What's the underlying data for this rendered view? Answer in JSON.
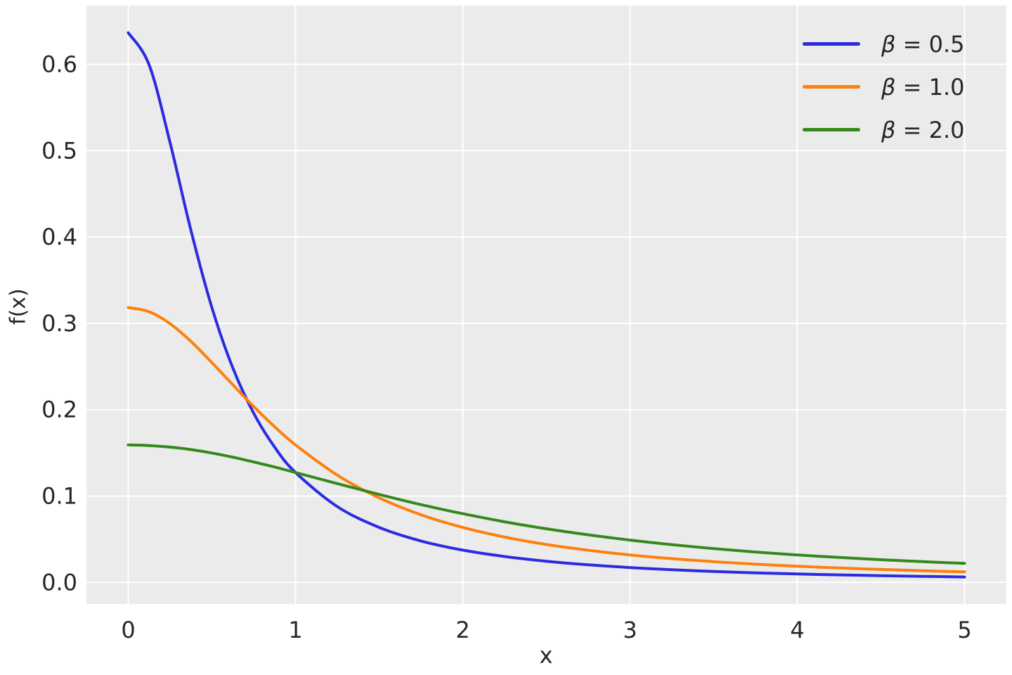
{
  "chart_data": {
    "type": "line",
    "title": "",
    "xlabel": "x",
    "ylabel": "f(x)",
    "xlim": [
      -0.25,
      5.25
    ],
    "ylim": [
      -0.025,
      0.668
    ],
    "grid": true,
    "legend_position": "upper right",
    "xticks": {
      "values": [
        0,
        1,
        2,
        3,
        4,
        5
      ],
      "labels": [
        "0",
        "1",
        "2",
        "3",
        "4",
        "5"
      ]
    },
    "yticks": {
      "values": [
        0.0,
        0.1,
        0.2,
        0.3,
        0.4,
        0.5,
        0.6
      ],
      "labels": [
        "0.0",
        "0.1",
        "0.2",
        "0.3",
        "0.4",
        "0.5",
        "0.6"
      ]
    },
    "x": [
      0,
      0.125,
      0.25,
      0.375,
      0.5,
      0.625,
      0.75,
      0.875,
      1.0,
      1.25,
      1.5,
      1.75,
      2.0,
      2.25,
      2.5,
      2.75,
      3.0,
      3.25,
      3.5,
      3.75,
      4.0,
      4.25,
      4.5,
      4.75,
      5.0
    ],
    "series": [
      {
        "name": "β = 0.5",
        "label_symbol": "β",
        "label_rest": " = 0.5",
        "color": "#2b2be0",
        "values": [
          0.6366,
          0.5992,
          0.5093,
          0.4074,
          0.3183,
          0.2484,
          0.1959,
          0.1567,
          0.1273,
          0.0878,
          0.0637,
          0.048,
          0.0374,
          0.03,
          0.0245,
          0.0204,
          0.0172,
          0.0147,
          0.0127,
          0.0111,
          0.0098,
          0.0087,
          0.0078,
          0.007,
          0.0063
        ]
      },
      {
        "name": "β = 1.0",
        "label_symbol": "β",
        "label_rest": " = 1.0",
        "color": "#ff7f0e",
        "values": [
          0.3183,
          0.3134,
          0.2996,
          0.2791,
          0.2546,
          0.2289,
          0.2037,
          0.1803,
          0.1592,
          0.1242,
          0.0979,
          0.0783,
          0.0637,
          0.0525,
          0.0439,
          0.0372,
          0.0318,
          0.0275,
          0.024,
          0.0211,
          0.0187,
          0.0167,
          0.015,
          0.0135,
          0.0122
        ]
      },
      {
        "name": "β = 2.0",
        "label_symbol": "β",
        "label_rest": " = 2.0",
        "color": "#35891b",
        "values": [
          0.1592,
          0.1585,
          0.1567,
          0.1538,
          0.1498,
          0.145,
          0.1395,
          0.1336,
          0.1273,
          0.1144,
          0.1019,
          0.0901,
          0.0796,
          0.0702,
          0.0621,
          0.0551,
          0.049,
          0.0437,
          0.0392,
          0.0352,
          0.0318,
          0.0289,
          0.0263,
          0.024,
          0.022
        ]
      }
    ],
    "colors": {
      "figure_background": "#ffffff",
      "plot_background": "#ebebeb",
      "grid": "#ffffff",
      "text": "#262626"
    }
  }
}
